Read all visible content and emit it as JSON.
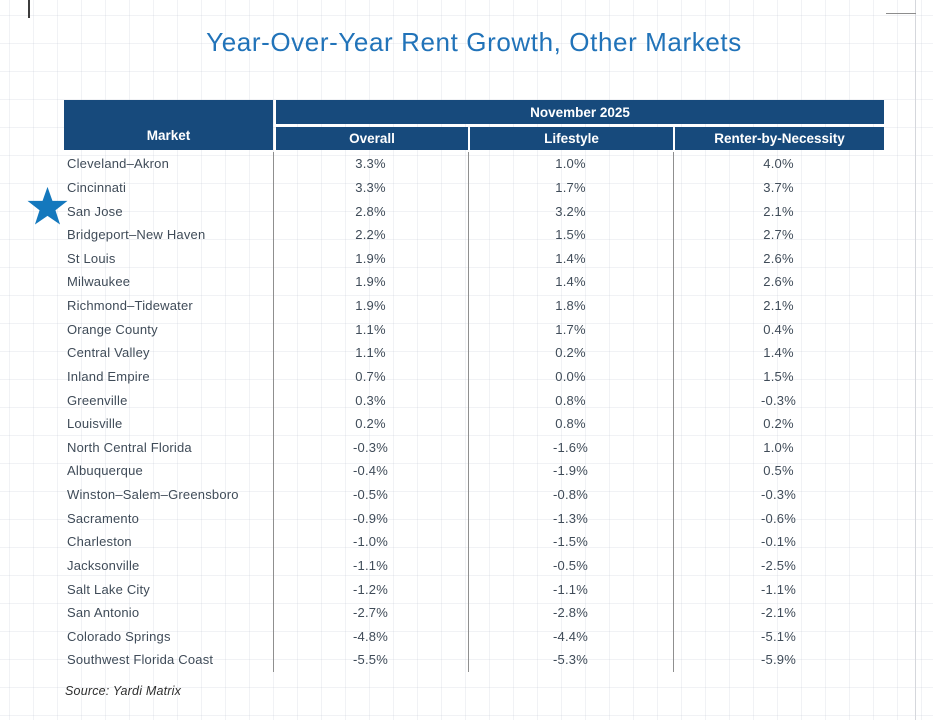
{
  "title": "Year-Over-Year Rent Growth, Other Markets",
  "source": "Source: Yardi Matrix",
  "colors": {
    "header_bg": "#174A7C",
    "title_text": "#2173B9",
    "star": "#1478BD",
    "body_text": "#3F4B58",
    "divider": "#8F8F8F"
  },
  "table": {
    "market_header": "Market",
    "period_header": "November 2025",
    "sub_headers": [
      "Overall",
      "Lifestyle",
      "Renter-by-Necessity"
    ]
  },
  "chart_data": {
    "type": "table",
    "title": "Year-Over-Year Rent Growth, Other Markets",
    "period": "November 2025",
    "columns": [
      "Market",
      "Overall",
      "Lifestyle",
      "Renter-by-Necessity"
    ],
    "value_unit": "%",
    "starred_market": "San Jose",
    "source": "Source: Yardi Matrix",
    "rows": [
      {
        "market": "Cleveland–Akron",
        "overall": 3.3,
        "lifestyle": 1.0,
        "rbn": 4.0
      },
      {
        "market": "Cincinnati",
        "overall": 3.3,
        "lifestyle": 1.7,
        "rbn": 3.7
      },
      {
        "market": "San Jose",
        "overall": 2.8,
        "lifestyle": 3.2,
        "rbn": 2.1
      },
      {
        "market": "Bridgeport–New Haven",
        "overall": 2.2,
        "lifestyle": 1.5,
        "rbn": 2.7
      },
      {
        "market": "St Louis",
        "overall": 1.9,
        "lifestyle": 1.4,
        "rbn": 2.6
      },
      {
        "market": "Milwaukee",
        "overall": 1.9,
        "lifestyle": 1.4,
        "rbn": 2.6
      },
      {
        "market": "Richmond–Tidewater",
        "overall": 1.9,
        "lifestyle": 1.8,
        "rbn": 2.1
      },
      {
        "market": "Orange County",
        "overall": 1.1,
        "lifestyle": 1.7,
        "rbn": 0.4
      },
      {
        "market": "Central Valley",
        "overall": 1.1,
        "lifestyle": 0.2,
        "rbn": 1.4
      },
      {
        "market": "Inland Empire",
        "overall": 0.7,
        "lifestyle": 0.0,
        "rbn": 1.5
      },
      {
        "market": "Greenville",
        "overall": 0.3,
        "lifestyle": 0.8,
        "rbn": -0.3
      },
      {
        "market": "Louisville",
        "overall": 0.2,
        "lifestyle": 0.8,
        "rbn": 0.2
      },
      {
        "market": "North Central Florida",
        "overall": -0.3,
        "lifestyle": -1.6,
        "rbn": 1.0
      },
      {
        "market": "Albuquerque",
        "overall": -0.4,
        "lifestyle": -1.9,
        "rbn": 0.5
      },
      {
        "market": "Winston–Salem–Greensboro",
        "overall": -0.5,
        "lifestyle": -0.8,
        "rbn": -0.3
      },
      {
        "market": "Sacramento",
        "overall": -0.9,
        "lifestyle": -1.3,
        "rbn": -0.6
      },
      {
        "market": "Charleston",
        "overall": -1.0,
        "lifestyle": -1.5,
        "rbn": -0.1
      },
      {
        "market": "Jacksonville",
        "overall": -1.1,
        "lifestyle": -0.5,
        "rbn": -2.5
      },
      {
        "market": "Salt Lake City",
        "overall": -1.2,
        "lifestyle": -1.1,
        "rbn": -1.1
      },
      {
        "market": "San Antonio",
        "overall": -2.7,
        "lifestyle": -2.8,
        "rbn": -2.1
      },
      {
        "market": "Colorado Springs",
        "overall": -4.8,
        "lifestyle": -4.4,
        "rbn": -5.1
      },
      {
        "market": "Southwest Florida Coast",
        "overall": -5.5,
        "lifestyle": -5.3,
        "rbn": -5.9
      }
    ]
  }
}
